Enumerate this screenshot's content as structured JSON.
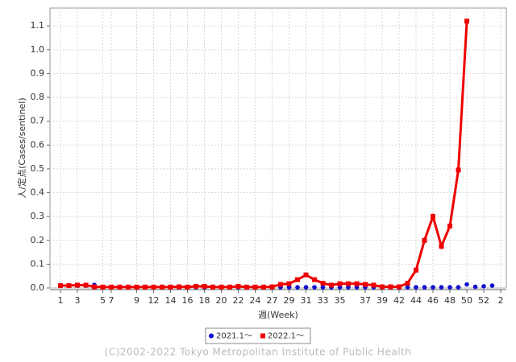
{
  "chart_data": {
    "type": "line",
    "ylabel": "人/定点(Cases/sentinel)",
    "xlabel": "週(Week)",
    "copyright": "(C)2002-2022 Tokyo Metropolitan Institute of Public Health",
    "categories": [
      "1",
      null,
      "3",
      null,
      null,
      "5",
      "7",
      null,
      null,
      "9",
      null,
      "12",
      null,
      "14",
      null,
      "16",
      null,
      "18",
      null,
      "20",
      null,
      "22",
      null,
      "24",
      null,
      "27",
      null,
      "29",
      null,
      "31",
      null,
      "33",
      null,
      "35",
      null,
      null,
      "37",
      null,
      "39",
      null,
      "42",
      null,
      "44",
      null,
      "46",
      null,
      "48",
      null,
      "50",
      null,
      "52",
      null,
      "2"
    ],
    "ylim": [
      0,
      1.175
    ],
    "yticks": [
      {
        "value": 0,
        "label": "0.0"
      },
      0.1,
      0.2,
      0.3,
      0.4,
      0.5,
      0.6,
      0.7,
      0.8,
      0.9,
      {
        "value": 1,
        "label": "1.0"
      },
      1.1
    ],
    "grid": true,
    "legend": "bottom",
    "series": [
      {
        "name": "2021.1～",
        "color": "#1010d0",
        "style": "points",
        "values": [
          0.01,
          0.01,
          0.01,
          0.01,
          0.013,
          0.004,
          0.004,
          0.003,
          0.003,
          0.003,
          0.003,
          0.003,
          0.003,
          0.003,
          0.003,
          0.003,
          0.003,
          0.003,
          0.003,
          0.003,
          0.003,
          0.003,
          0.003,
          0.003,
          0.003,
          0.003,
          0.003,
          0.003,
          0.003,
          0.003,
          0.003,
          0.003,
          0.003,
          0.003,
          0.003,
          0.003,
          0.003,
          0.003,
          0.003,
          0.003,
          0.003,
          0.003,
          0.003,
          0.003,
          0.003,
          0.003,
          0.003,
          0.003,
          0.015,
          0.005,
          0.007,
          0.01,
          null
        ]
      },
      {
        "name": "2022.1～",
        "color": "#ee0000",
        "style": "line",
        "values": [
          0.01,
          0.01,
          0.012,
          0.012,
          0.005,
          0.004,
          0.004,
          0.004,
          0.004,
          0.004,
          0.004,
          0.004,
          0.004,
          0.004,
          0.005,
          0.004,
          0.007,
          0.007,
          0.004,
          0.004,
          0.004,
          0.007,
          0.004,
          0.004,
          0.004,
          0.005,
          0.015,
          0.018,
          0.035,
          0.055,
          0.035,
          0.02,
          0.012,
          0.018,
          0.018,
          0.018,
          0.015,
          0.012,
          0.005,
          0.005,
          0.005,
          0.02,
          0.075,
          0.2,
          0.3,
          0.175,
          0.26,
          0.495,
          1.12,
          null,
          null,
          null,
          null
        ]
      }
    ]
  }
}
